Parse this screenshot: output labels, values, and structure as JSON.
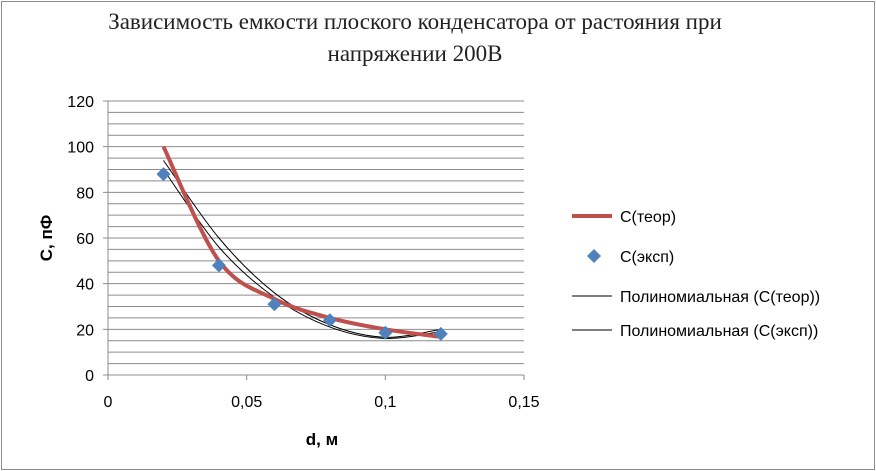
{
  "chart_data": {
    "type": "scatter",
    "title": "Зависимость емкости плоского конденсатора от растояния при напряжении 200В",
    "xlabel": "d, м",
    "ylabel": "C, пФ",
    "xlim": [
      0,
      0.15
    ],
    "ylim": [
      0,
      120
    ],
    "x_ticks": [
      "0",
      "0,05",
      "0,1",
      "0,15"
    ],
    "y_ticks": [
      "0",
      "20",
      "40",
      "60",
      "80",
      "100",
      "120"
    ],
    "grid": "horizontal, every 5",
    "legend_position": "right",
    "series": [
      {
        "name": "C(теор)",
        "kind": "smooth-line",
        "color": "#c0504d",
        "x": [
          0.02,
          0.04,
          0.06,
          0.08,
          0.1,
          0.12
        ],
        "y": [
          100,
          50,
          33.3,
          25,
          20,
          16.7
        ]
      },
      {
        "name": "C(эксп)",
        "kind": "markers",
        "marker": "diamond",
        "color": "#4f81bd",
        "x": [
          0.02,
          0.04,
          0.06,
          0.08,
          0.1,
          0.12
        ],
        "y": [
          88,
          48,
          31,
          24,
          18.5,
          18
        ]
      },
      {
        "name": "Полиномиальная (C(теор))",
        "kind": "trendline",
        "color": "#000000",
        "x": [
          0.02,
          0.04,
          0.06,
          0.08,
          0.1,
          0.12
        ],
        "y": [
          94,
          60,
          36,
          22,
          16.5,
          20
        ]
      },
      {
        "name": "Полиномиальная (C(эксп))",
        "kind": "trendline",
        "color": "#000000",
        "x": [
          0.02,
          0.04,
          0.06,
          0.08,
          0.1,
          0.12
        ],
        "y": [
          90,
          56,
          34,
          21,
          16,
          19
        ]
      }
    ]
  }
}
